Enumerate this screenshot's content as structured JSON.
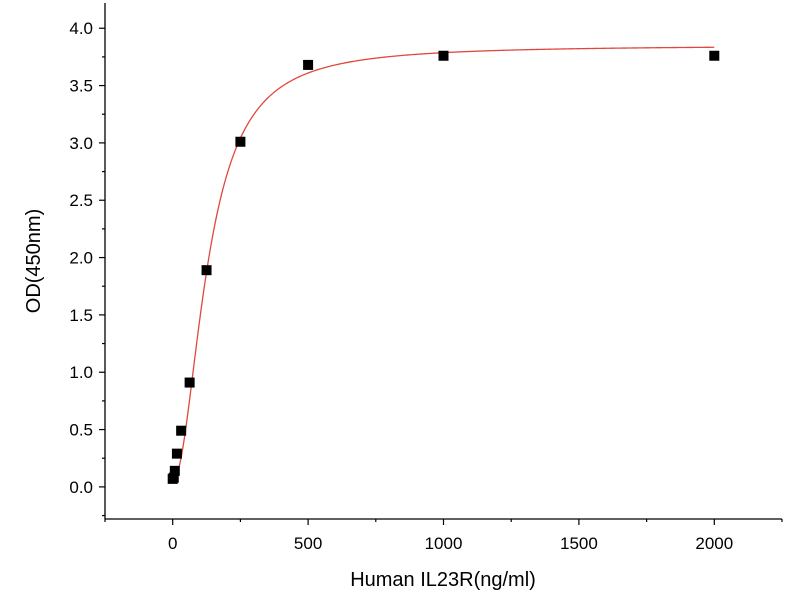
{
  "chart_data": {
    "type": "scatter",
    "title": "",
    "xlabel": "Human IL23R(ng/ml)",
    "ylabel": "OD(450nm)",
    "xlim": [
      -250,
      2250
    ],
    "ylim": [
      -0.28,
      4.22
    ],
    "x_ticks": [
      0,
      500,
      1000,
      1500,
      2000
    ],
    "x_tick_labels": [
      "0",
      "500",
      "1000",
      "1500",
      "2000"
    ],
    "y_ticks": [
      0.0,
      0.5,
      1.0,
      1.5,
      2.0,
      2.5,
      3.0,
      3.5,
      4.0
    ],
    "y_tick_labels": [
      "0.0",
      "0.5",
      "1.0",
      "1.5",
      "2.0",
      "2.5",
      "3.0",
      "3.5",
      "4.0"
    ],
    "grid": false,
    "legend": "none",
    "series": [
      {
        "marker": "square",
        "color": "#000000",
        "x": [
          0,
          3.9,
          7.8,
          15.6,
          31.25,
          62.5,
          125,
          250,
          500,
          1000,
          2000
        ],
        "y": [
          0.07,
          0.08,
          0.14,
          0.29,
          0.49,
          0.91,
          1.89,
          3.01,
          3.68,
          3.76,
          3.76
        ]
      }
    ],
    "fit": {
      "type": "4PL",
      "color": "#e0483e",
      "bottom": 0.05,
      "top": 3.85,
      "ec50": 130,
      "hill": 2.0,
      "x_range": [
        0,
        2000
      ]
    }
  }
}
